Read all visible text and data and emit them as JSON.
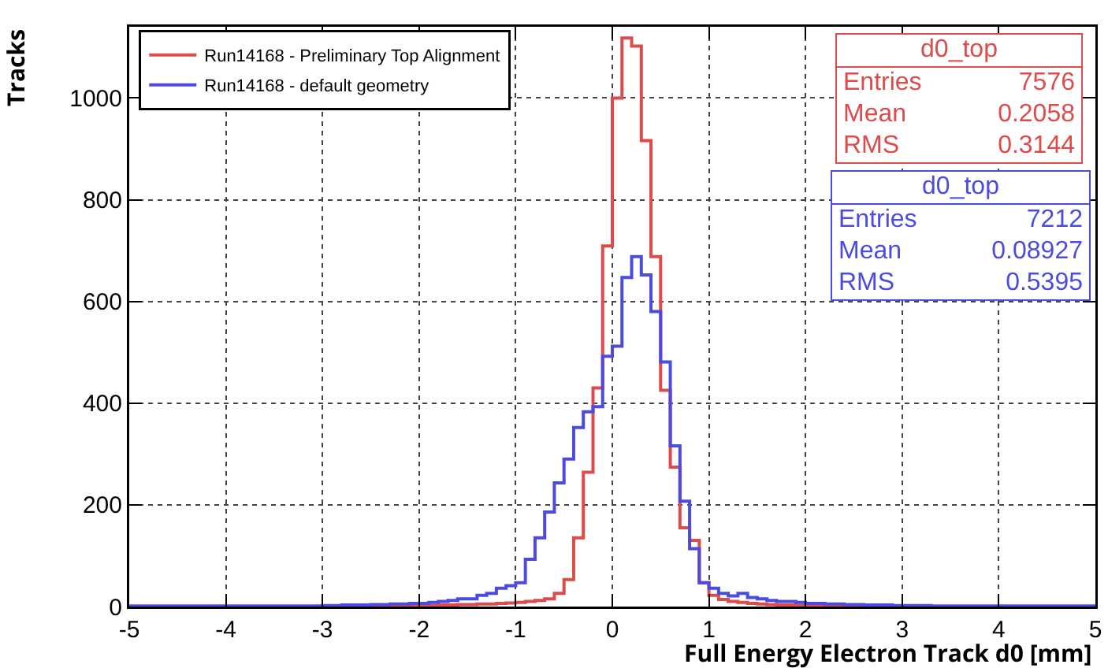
{
  "chart_data": {
    "type": "histogram",
    "xlabel": "Full Energy Electron Track d0 [mm]",
    "ylabel": "Tracks",
    "bins": [
      -5,
      -4.9,
      -4.8,
      -4.7,
      -4.6,
      -4.5,
      -4.4,
      -4.3,
      -4.2,
      -4.1,
      -4,
      -3.9,
      -3.8,
      -3.7,
      -3.6,
      -3.5,
      -3.4,
      -3.3,
      -3.2,
      -3.1,
      -3,
      -2.9,
      -2.8,
      -2.7,
      -2.6,
      -2.5,
      -2.4,
      -2.3,
      -2.2,
      -2.1,
      -2,
      -1.9,
      -1.8,
      -1.7,
      -1.6,
      -1.5,
      -1.4,
      -1.3,
      -1.2,
      -1.1,
      -1,
      -0.9,
      -0.8,
      -0.7,
      -0.6,
      -0.5,
      -0.4,
      -0.3,
      -0.2,
      -0.1,
      0,
      0.1,
      0.2,
      0.3,
      0.4,
      0.5,
      0.6,
      0.7,
      0.8,
      0.9,
      1,
      1.1,
      1.2,
      1.3,
      1.4,
      1.5,
      1.6,
      1.7,
      1.8,
      1.9,
      2,
      2.1,
      2.2,
      2.3,
      2.4,
      2.5,
      2.6,
      2.7,
      2.8,
      2.9,
      3,
      3.1,
      3.2,
      3.3,
      3.4,
      3.5,
      3.6,
      3.7,
      3.8,
      3.9,
      4,
      4.1,
      4.2,
      4.3,
      4.4,
      4.5,
      4.6,
      4.7,
      4.8,
      4.9,
      5
    ],
    "series": [
      {
        "name": "Run14168 - Preliminary Top Alignment",
        "color": "#dd4b4b",
        "values": [
          0,
          0,
          0,
          0,
          0,
          0,
          0,
          0,
          0,
          0,
          0,
          0,
          0,
          0,
          0,
          0,
          0,
          0,
          0,
          0,
          0,
          0,
          0,
          0,
          0,
          1,
          1,
          1,
          1,
          1,
          2,
          2,
          3,
          3,
          4,
          4,
          5,
          5,
          6,
          7,
          8,
          10,
          12,
          15,
          26,
          53,
          135,
          264,
          430,
          709,
          1000,
          1118,
          1102,
          916,
          688,
          425,
          274,
          155,
          130,
          47,
          22,
          14,
          10,
          8,
          6,
          5,
          4,
          3,
          3,
          2,
          1,
          1,
          1,
          1,
          1,
          0,
          0,
          0,
          0,
          0,
          0,
          0,
          0,
          0,
          0,
          0,
          0,
          0,
          0,
          0,
          0,
          0,
          0,
          0,
          0,
          0,
          0,
          0,
          0,
          0
        ]
      },
      {
        "name": "Run14168 - default geometry",
        "color": "#4b4be0",
        "values": [
          1,
          1,
          1,
          1,
          1,
          1,
          1,
          1,
          1,
          1,
          1,
          1,
          1,
          1,
          1,
          1,
          1,
          1,
          1,
          1,
          2,
          2,
          3,
          3,
          3,
          4,
          4,
          5,
          5,
          6,
          6,
          8,
          10,
          12,
          15,
          15,
          22,
          26,
          36,
          41,
          47,
          93,
          135,
          186,
          243,
          290,
          352,
          383,
          393,
          492,
          512,
          647,
          688,
          652,
          580,
          481,
          316,
          207,
          114,
          47,
          36,
          26,
          21,
          26,
          18,
          15,
          12,
          10,
          10,
          8,
          6,
          6,
          5,
          5,
          4,
          4,
          3,
          3,
          3,
          2,
          2,
          2,
          2,
          1,
          1,
          1,
          1,
          1,
          1,
          1,
          1,
          1,
          1,
          1,
          1,
          1,
          1,
          1,
          1,
          1
        ]
      }
    ],
    "xlim": [
      -5,
      5
    ],
    "xticks": [
      -5,
      -4,
      -3,
      -2,
      -1,
      0,
      1,
      2,
      3,
      4,
      5
    ],
    "ylim": [
      0,
      1140
    ],
    "yticks": [
      0,
      200,
      400,
      600,
      800,
      1000
    ],
    "grid": true,
    "legend": "top left",
    "annotations": [
      "d0_top",
      "Entries 7576",
      "Mean 0.2058",
      "RMS 0.3144",
      "d0_top",
      "Entries 7212",
      "Mean 0.08927",
      "RMS 0.5395"
    ]
  }
}
